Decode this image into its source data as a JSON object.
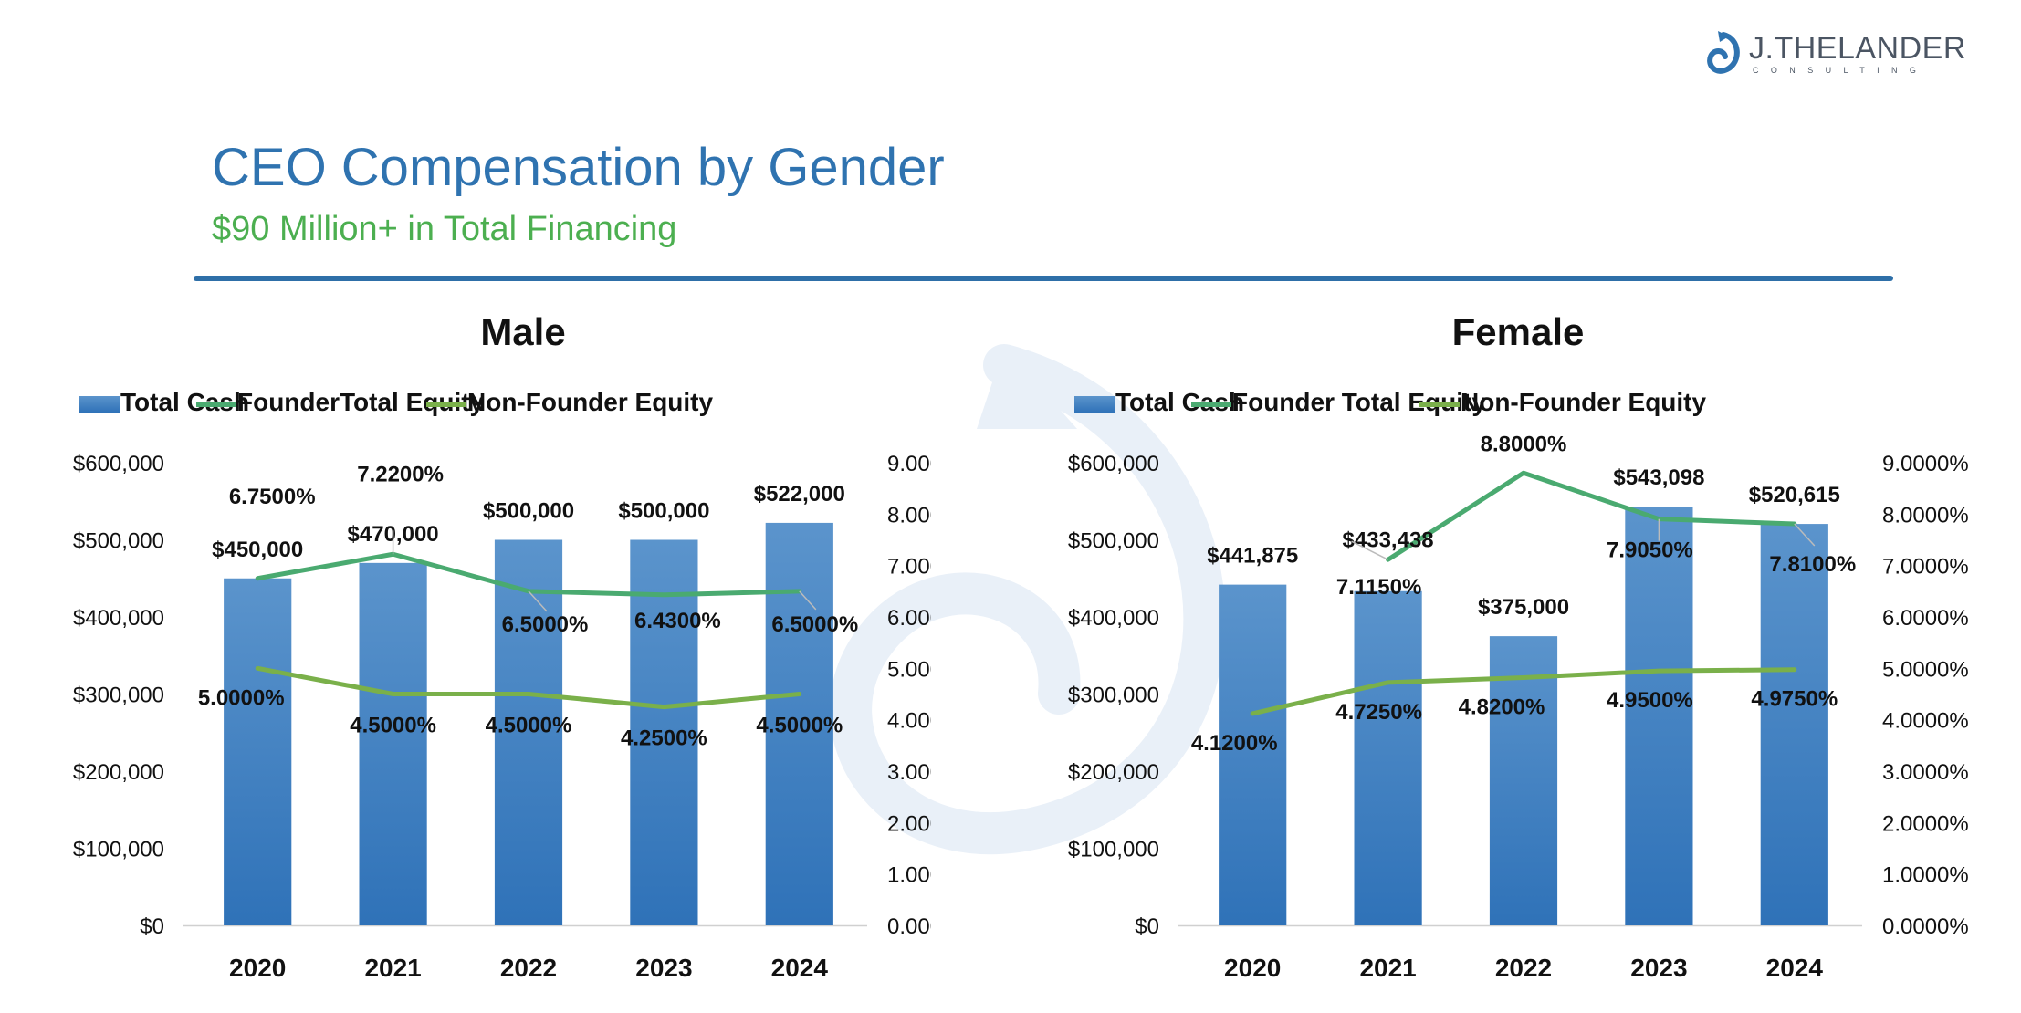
{
  "brand": {
    "name": "J.THELANDER",
    "tagline": "CONSULTING"
  },
  "header": {
    "title": "CEO Compensation by Gender",
    "subtitle": "$90 Million+ in Total Financing"
  },
  "colors": {
    "bar": "#3a7dc2",
    "founder": "#4aaa70",
    "nonfounder": "#7ab04a",
    "title": "#2f73b0",
    "subtitle": "#4caf50"
  },
  "chart_data": [
    {
      "type": "bar",
      "title": "Male",
      "categories": [
        "2020",
        "2021",
        "2022",
        "2023",
        "2024"
      ],
      "legend": [
        "Total Cash",
        "FounderTotal Equity",
        "Non-Founder Equity"
      ],
      "y_left": {
        "ticks": [
          "$0",
          "$100,000",
          "$200,000",
          "$300,000",
          "$400,000",
          "$500,000",
          "$600,000"
        ],
        "min": 0,
        "max": 600000
      },
      "y_right": {
        "ticks": [
          "0.0000%",
          "1.0000%",
          "2.0000%",
          "3.0000%",
          "4.0000%",
          "5.0000%",
          "6.0000%",
          "7.0000%",
          "8.0000%",
          "9.0000%"
        ],
        "min": 0,
        "max": 9
      },
      "series": [
        {
          "name": "Total Cash",
          "kind": "bar",
          "axis": "left",
          "values": [
            450000,
            470000,
            500000,
            500000,
            522000
          ],
          "labels": [
            "$450,000",
            "$470,000",
            "$500,000",
            "$500,000",
            "$522,000"
          ]
        },
        {
          "name": "FounderTotal Equity",
          "kind": "line",
          "axis": "right",
          "values": [
            6.75,
            7.22,
            6.5,
            6.43,
            6.5
          ],
          "labels": [
            "6.7500%",
            "7.2200%",
            "6.5000%",
            "6.4300%",
            "6.5000%"
          ]
        },
        {
          "name": "Non-Founder Equity",
          "kind": "line",
          "axis": "right",
          "values": [
            5.0,
            4.5,
            4.5,
            4.25,
            4.5
          ],
          "labels": [
            "5.0000%",
            "4.5000%",
            "4.5000%",
            "4.2500%",
            "4.5000%"
          ]
        }
      ]
    },
    {
      "type": "bar",
      "title": "Female",
      "categories": [
        "2020",
        "2021",
        "2022",
        "2023",
        "2024"
      ],
      "legend": [
        "Total Cash",
        "Founder Total Equity",
        "Non-Founder Equity"
      ],
      "y_left": {
        "ticks": [
          "$0",
          "$100,000",
          "$200,000",
          "$300,000",
          "$400,000",
          "$500,000",
          "$600,000"
        ],
        "min": 0,
        "max": 600000
      },
      "y_right": {
        "ticks": [
          "0.0000%",
          "1.0000%",
          "2.0000%",
          "3.0000%",
          "4.0000%",
          "5.0000%",
          "6.0000%",
          "7.0000%",
          "8.0000%",
          "9.0000%"
        ],
        "min": 0,
        "max": 9
      },
      "series": [
        {
          "name": "Total Cash",
          "kind": "bar",
          "axis": "left",
          "values": [
            441875,
            433438,
            375000,
            543098,
            520615
          ],
          "labels": [
            "$441,875",
            "$433,438",
            "$375,000",
            "$543,098",
            "$520,615"
          ]
        },
        {
          "name": "Founder Total Equity",
          "kind": "line",
          "axis": "right",
          "values": [
            null,
            7.115,
            8.8,
            7.905,
            7.81
          ],
          "labels": [
            "",
            "7.1150%",
            "8.8000%",
            "7.9050%",
            "7.8100%"
          ]
        },
        {
          "name": "Non-Founder Equity",
          "kind": "line",
          "axis": "right",
          "values": [
            4.12,
            4.725,
            4.82,
            4.95,
            4.975
          ],
          "labels": [
            "4.1200%",
            "4.7250%",
            "4.8200%",
            "4.9500%",
            "4.9750%"
          ]
        }
      ]
    }
  ]
}
